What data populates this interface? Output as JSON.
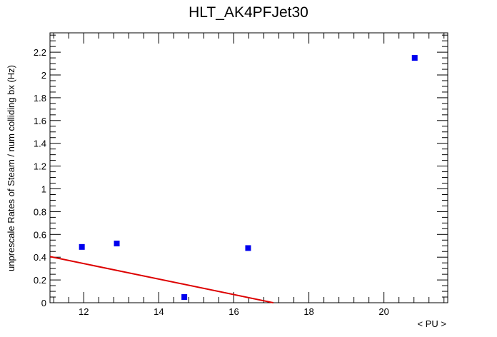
{
  "chart_data": {
    "type": "scatter",
    "title": "HLT_AK4PFJet30",
    "xlabel": "< PU >",
    "ylabel": "unprescale Rates of Steam / num colliding bx (Hz)",
    "xlim": [
      11.1,
      21.7
    ],
    "ylim": [
      0,
      2.37
    ],
    "x_ticks": [
      12,
      14,
      16,
      18,
      20
    ],
    "y_ticks": [
      0,
      0.2,
      0.4,
      0.6,
      0.8,
      1,
      1.2,
      1.4,
      1.6,
      1.8,
      2,
      2.2
    ],
    "grid": false,
    "series": [
      {
        "type": "scatter",
        "color": "#0000ee",
        "marker": "square",
        "points": [
          {
            "x": 11.95,
            "y": 0.49
          },
          {
            "x": 12.88,
            "y": 0.52
          },
          {
            "x": 14.68,
            "y": 0.05
          },
          {
            "x": 16.38,
            "y": 0.48
          },
          {
            "x": 20.82,
            "y": 2.15
          }
        ]
      },
      {
        "type": "line",
        "color": "#dd0000",
        "points": [
          {
            "x": 11.1,
            "y": 0.405
          },
          {
            "x": 17.05,
            "y": 0.0
          }
        ]
      }
    ]
  }
}
